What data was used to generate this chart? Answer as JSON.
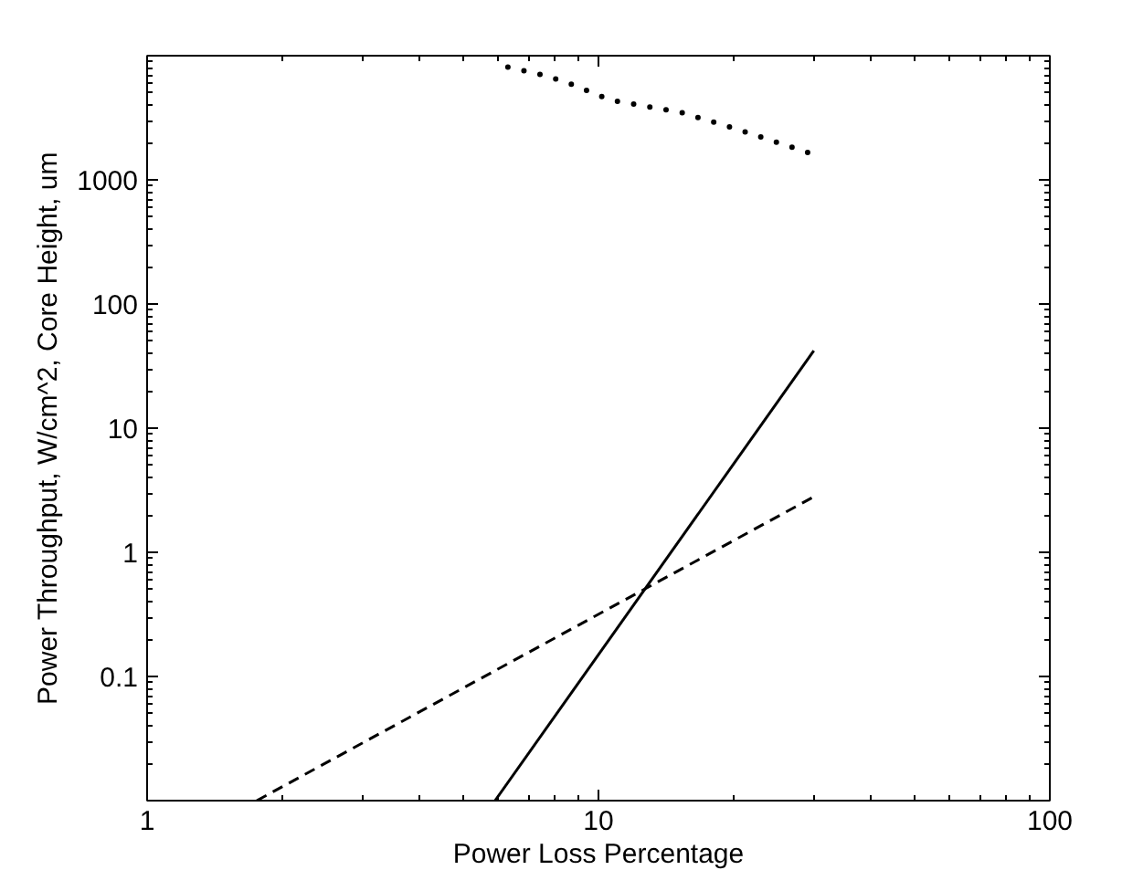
{
  "chart_data": {
    "type": "line",
    "xlabel": "Power Loss Percentage",
    "ylabel": "Power Throughput, W/cm^2, Core Height, um",
    "log": "xy",
    "grid": false,
    "marker": "none",
    "xlim": [
      1,
      100
    ],
    "ylim": [
      0.01,
      10000
    ],
    "xticks": [
      1,
      10,
      100
    ],
    "yticks": [
      0.1,
      1,
      10,
      100,
      1000
    ],
    "series": [
      {
        "color": "#000000",
        "line_style": "solid",
        "x": [
          5.9,
          30
        ],
        "values": [
          0.01,
          42
        ]
      },
      {
        "color": "#000000",
        "line_style": "dashed",
        "x": [
          1.75,
          30
        ],
        "values": [
          0.01,
          2.8
        ]
      },
      {
        "color": "#000000",
        "line_style": "dotted",
        "x": [
          6.3,
          7.4,
          8.5,
          10.6,
          15.2,
          20,
          30
        ],
        "values": [
          8100,
          7100,
          6100,
          4400,
          3500,
          2600,
          1600
        ]
      }
    ]
  }
}
